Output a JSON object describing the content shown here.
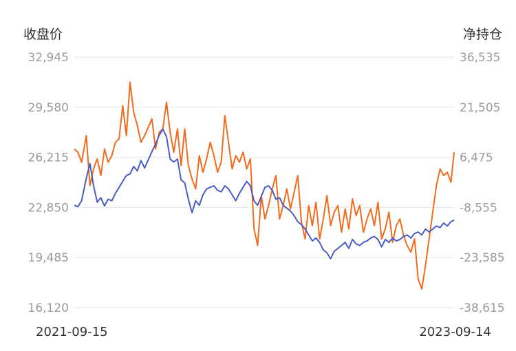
{
  "chart_data": {
    "type": "line",
    "y_left_title": "收盘价",
    "y_right_title": "净持仓",
    "y_left_ticks": [
      "32,945",
      "29,580",
      "26,215",
      "22,850",
      "19,485",
      "16,120"
    ],
    "y_right_ticks": [
      "36,535",
      "21,505",
      "6,475",
      "-8,555",
      "-23,585",
      "-38,615"
    ],
    "y_left_range": [
      16120,
      32945
    ],
    "y_right_range": [
      -38615,
      36535
    ],
    "x_labels": [
      "2021-09-15",
      "2023-09-14"
    ],
    "x_range": [
      "2021-09-15",
      "2023-09-14"
    ],
    "grid": true,
    "legend": "none",
    "colors": {
      "close": "#4a5bc4",
      "net": "#f26a1b"
    },
    "series": [
      {
        "axis": "left",
        "points": [
          [
            "2021-09-15",
            23000
          ],
          [
            "2021-09-22",
            22900
          ],
          [
            "2021-09-29",
            23300
          ],
          [
            "2021-10-08",
            24800
          ],
          [
            "2021-10-15",
            25800
          ],
          [
            "2021-10-22",
            24300
          ],
          [
            "2021-10-29",
            23200
          ],
          [
            "2021-11-05",
            23500
          ],
          [
            "2021-11-12",
            22950
          ],
          [
            "2021-11-19",
            23400
          ],
          [
            "2021-11-26",
            23300
          ],
          [
            "2021-12-03",
            23800
          ],
          [
            "2021-12-10",
            24200
          ],
          [
            "2021-12-17",
            24600
          ],
          [
            "2021-12-24",
            25000
          ],
          [
            "2021-12-31",
            25100
          ],
          [
            "2022-01-07",
            25600
          ],
          [
            "2022-01-14",
            25300
          ],
          [
            "2022-01-21",
            26000
          ],
          [
            "2022-01-28",
            25500
          ],
          [
            "2022-02-11",
            26600
          ],
          [
            "2022-02-18",
            27100
          ],
          [
            "2022-02-25",
            27700
          ],
          [
            "2022-03-04",
            28100
          ],
          [
            "2022-03-11",
            27600
          ],
          [
            "2022-03-18",
            26100
          ],
          [
            "2022-03-25",
            25900
          ],
          [
            "2022-04-01",
            26100
          ],
          [
            "2022-04-08",
            24700
          ],
          [
            "2022-04-15",
            24500
          ],
          [
            "2022-04-22",
            23400
          ],
          [
            "2022-04-29",
            22500
          ],
          [
            "2022-05-06",
            23300
          ],
          [
            "2022-05-13",
            23000
          ],
          [
            "2022-05-20",
            23700
          ],
          [
            "2022-05-27",
            24100
          ],
          [
            "2022-06-03",
            24200
          ],
          [
            "2022-06-10",
            24300
          ],
          [
            "2022-06-17",
            24000
          ],
          [
            "2022-06-24",
            23900
          ],
          [
            "2022-07-01",
            24300
          ],
          [
            "2022-07-08",
            24100
          ],
          [
            "2022-07-15",
            23700
          ],
          [
            "2022-07-22",
            23300
          ],
          [
            "2022-07-29",
            23800
          ],
          [
            "2022-08-05",
            24200
          ],
          [
            "2022-08-12",
            24600
          ],
          [
            "2022-08-19",
            24300
          ],
          [
            "2022-08-26",
            23300
          ],
          [
            "2022-09-02",
            23000
          ],
          [
            "2022-09-09",
            23600
          ],
          [
            "2022-09-16",
            24200
          ],
          [
            "2022-09-23",
            24300
          ],
          [
            "2022-09-30",
            24000
          ],
          [
            "2022-10-07",
            23400
          ],
          [
            "2022-10-14",
            23500
          ],
          [
            "2022-10-21",
            23000
          ],
          [
            "2022-10-28",
            22800
          ],
          [
            "2022-11-04",
            22600
          ],
          [
            "2022-11-11",
            22300
          ],
          [
            "2022-11-18",
            21900
          ],
          [
            "2022-11-25",
            21700
          ],
          [
            "2022-12-02",
            21400
          ],
          [
            "2022-12-09",
            21000
          ],
          [
            "2022-12-16",
            20600
          ],
          [
            "2022-12-23",
            20800
          ],
          [
            "2022-12-30",
            20500
          ],
          [
            "2023-01-06",
            20000
          ],
          [
            "2023-01-13",
            19800
          ],
          [
            "2023-01-20",
            19400
          ],
          [
            "2023-01-27",
            19900
          ],
          [
            "2023-02-03",
            20100
          ],
          [
            "2023-02-10",
            20300
          ],
          [
            "2023-02-17",
            20500
          ],
          [
            "2023-02-24",
            20100
          ],
          [
            "2023-03-03",
            20700
          ],
          [
            "2023-03-10",
            20400
          ],
          [
            "2023-03-17",
            20300
          ],
          [
            "2023-03-24",
            20500
          ],
          [
            "2023-03-31",
            20600
          ],
          [
            "2023-04-07",
            20800
          ],
          [
            "2023-04-14",
            20900
          ],
          [
            "2023-04-21",
            20700
          ],
          [
            "2023-04-28",
            20200
          ],
          [
            "2023-05-05",
            20700
          ],
          [
            "2023-05-12",
            20500
          ],
          [
            "2023-05-19",
            20800
          ],
          [
            "2023-05-26",
            20600
          ],
          [
            "2023-06-02",
            20700
          ],
          [
            "2023-06-09",
            20900
          ],
          [
            "2023-06-16",
            21000
          ],
          [
            "2023-06-23",
            20800
          ],
          [
            "2023-06-30",
            21100
          ],
          [
            "2023-07-07",
            21200
          ],
          [
            "2023-07-14",
            21000
          ],
          [
            "2023-07-21",
            21400
          ],
          [
            "2023-07-28",
            21200
          ],
          [
            "2023-08-04",
            21400
          ],
          [
            "2023-08-11",
            21600
          ],
          [
            "2023-08-18",
            21500
          ],
          [
            "2023-08-25",
            21800
          ],
          [
            "2023-09-01",
            21600
          ],
          [
            "2023-09-08",
            21900
          ],
          [
            "2023-09-14",
            22000
          ]
        ]
      },
      {
        "axis": "right",
        "points": [
          [
            "2021-09-15",
            9000
          ],
          [
            "2021-09-22",
            8000
          ],
          [
            "2021-09-29",
            5000
          ],
          [
            "2021-10-08",
            13000
          ],
          [
            "2021-10-15",
            -2000
          ],
          [
            "2021-10-22",
            3000
          ],
          [
            "2021-10-29",
            6000
          ],
          [
            "2021-11-05",
            1000
          ],
          [
            "2021-11-12",
            9000
          ],
          [
            "2021-11-19",
            5000
          ],
          [
            "2021-11-26",
            7000
          ],
          [
            "2021-12-03",
            11000
          ],
          [
            "2021-12-10",
            12000
          ],
          [
            "2021-12-17",
            22000
          ],
          [
            "2021-12-24",
            13000
          ],
          [
            "2021-12-31",
            29000
          ],
          [
            "2022-01-07",
            20000
          ],
          [
            "2022-01-14",
            16000
          ],
          [
            "2022-01-21",
            11000
          ],
          [
            "2022-01-28",
            13000
          ],
          [
            "2022-02-11",
            18000
          ],
          [
            "2022-02-18",
            9000
          ],
          [
            "2022-02-25",
            14000
          ],
          [
            "2022-03-04",
            15000
          ],
          [
            "2022-03-11",
            23000
          ],
          [
            "2022-03-18",
            14000
          ],
          [
            "2022-03-25",
            8000
          ],
          [
            "2022-04-01",
            15000
          ],
          [
            "2022-04-08",
            4000
          ],
          [
            "2022-04-15",
            15000
          ],
          [
            "2022-04-22",
            4000
          ],
          [
            "2022-04-29",
            0
          ],
          [
            "2022-05-06",
            -3000
          ],
          [
            "2022-05-13",
            7000
          ],
          [
            "2022-05-20",
            2000
          ],
          [
            "2022-05-27",
            6000
          ],
          [
            "2022-06-03",
            11000
          ],
          [
            "2022-06-10",
            7000
          ],
          [
            "2022-06-17",
            2000
          ],
          [
            "2022-06-24",
            5000
          ],
          [
            "2022-07-01",
            19000
          ],
          [
            "2022-07-08",
            11000
          ],
          [
            "2022-07-15",
            3000
          ],
          [
            "2022-07-22",
            7000
          ],
          [
            "2022-07-29",
            5000
          ],
          [
            "2022-08-05",
            8000
          ],
          [
            "2022-08-12",
            3000
          ],
          [
            "2022-08-19",
            6000
          ],
          [
            "2022-08-26",
            -15000
          ],
          [
            "2022-09-02",
            -20000
          ],
          [
            "2022-09-09",
            -5000
          ],
          [
            "2022-09-16",
            -12000
          ],
          [
            "2022-09-23",
            -8000
          ],
          [
            "2022-09-30",
            -3000
          ],
          [
            "2022-10-07",
            1000
          ],
          [
            "2022-10-14",
            -12000
          ],
          [
            "2022-10-21",
            -8000
          ],
          [
            "2022-10-28",
            -3000
          ],
          [
            "2022-11-04",
            -9000
          ],
          [
            "2022-11-11",
            -4000
          ],
          [
            "2022-11-18",
            1000
          ],
          [
            "2022-11-25",
            -13000
          ],
          [
            "2022-12-02",
            -18000
          ],
          [
            "2022-12-09",
            -8000
          ],
          [
            "2022-12-16",
            -14000
          ],
          [
            "2022-12-23",
            -7000
          ],
          [
            "2022-12-30",
            -18000
          ],
          [
            "2023-01-06",
            -12000
          ],
          [
            "2023-01-13",
            -5000
          ],
          [
            "2023-01-20",
            -14000
          ],
          [
            "2023-01-27",
            -10000
          ],
          [
            "2023-02-03",
            -8000
          ],
          [
            "2023-02-10",
            -16000
          ],
          [
            "2023-02-17",
            -9000
          ],
          [
            "2023-02-24",
            -15000
          ],
          [
            "2023-03-03",
            -6000
          ],
          [
            "2023-03-10",
            -11000
          ],
          [
            "2023-03-17",
            -8000
          ],
          [
            "2023-03-24",
            -16000
          ],
          [
            "2023-03-31",
            -12000
          ],
          [
            "2023-04-07",
            -9000
          ],
          [
            "2023-04-14",
            -14000
          ],
          [
            "2023-04-21",
            -7000
          ],
          [
            "2023-04-28",
            -18000
          ],
          [
            "2023-05-05",
            -15000
          ],
          [
            "2023-05-12",
            -10000
          ],
          [
            "2023-05-19",
            -19000
          ],
          [
            "2023-05-26",
            -14000
          ],
          [
            "2023-06-02",
            -12000
          ],
          [
            "2023-06-09",
            -17000
          ],
          [
            "2023-06-16",
            -20000
          ],
          [
            "2023-06-23",
            -22000
          ],
          [
            "2023-06-30",
            -18000
          ],
          [
            "2023-07-07",
            -30000
          ],
          [
            "2023-07-14",
            -33000
          ],
          [
            "2023-07-21",
            -26000
          ],
          [
            "2023-07-28",
            -18000
          ],
          [
            "2023-08-04",
            -10000
          ],
          [
            "2023-08-11",
            -2000
          ],
          [
            "2023-08-18",
            3000
          ],
          [
            "2023-08-25",
            1000
          ],
          [
            "2023-09-01",
            2000
          ],
          [
            "2023-09-08",
            -1000
          ],
          [
            "2023-09-14",
            8000
          ]
        ]
      }
    ]
  }
}
